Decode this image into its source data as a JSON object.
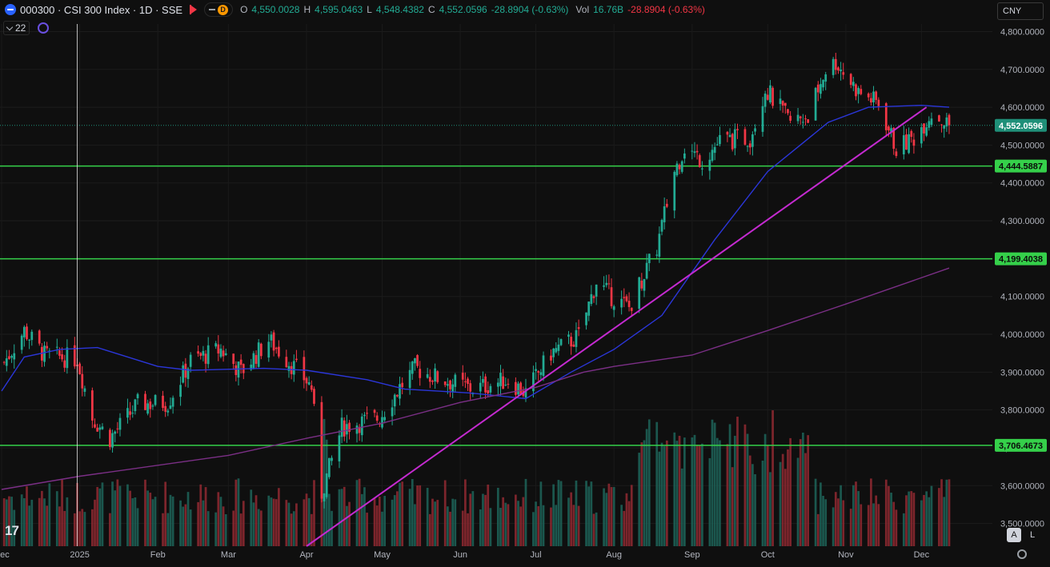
{
  "header": {
    "symbol": "000300 · CSI 300 Index · 1D · SSE",
    "ohlc": {
      "o_label": "O",
      "o": "4,550.0028",
      "h_label": "H",
      "h": "4,595.0463",
      "l_label": "L",
      "l": "4,548.4382",
      "c_label": "C",
      "c": "4,552.0596",
      "change": "-28.8904 (-0.63%)"
    },
    "vol_label": "Vol",
    "vol": "16.76B",
    "vol_change": "-28.8904 (-0.63%)",
    "indicator_count": "22",
    "pill_letter": "D",
    "currency": "CNY"
  },
  "controls": {
    "logo_text": "17",
    "auto_label": "A",
    "log_label": "L"
  },
  "colors": {
    "background": "#0f0f0f",
    "up": "#22ab94",
    "down": "#f23645",
    "ma_fast": "#2b36d9",
    "ma_slow": "#7b2f86",
    "trendline": "#c42ad0",
    "hline": "#35d04a",
    "last_price": "#1f8f78"
  },
  "chart_data": {
    "type": "candlestick",
    "title": "000300 · CSI 300 Index · 1D · SSE",
    "y_axis": {
      "min": 3440,
      "max": 4820,
      "ticks": [
        3500,
        3600,
        3700,
        3800,
        3900,
        4000,
        4100,
        4200,
        4300,
        4400,
        4500,
        4600,
        4700,
        4800
      ],
      "tick_labels": [
        "3,500.0000",
        "3,600.0000",
        "3,700.0000",
        "3,800.0000",
        "3,900.0000",
        "4,000.0000",
        "4,100.0000",
        "4,200.0000",
        "4,300.0000",
        "4,400.0000",
        "4,500.0000",
        "4,600.0000",
        "4,700.0000",
        "4,800.0000"
      ]
    },
    "x_axis": {
      "labels": [
        {
          "label": "Dec",
          "date": "2024-12-01"
        },
        {
          "label": "2025",
          "date": "2025-01-01"
        },
        {
          "label": "Feb",
          "date": "2025-02-01"
        },
        {
          "label": "Mar",
          "date": "2025-03-01"
        },
        {
          "label": "Apr",
          "date": "2025-04-01"
        },
        {
          "label": "May",
          "date": "2025-05-01"
        },
        {
          "label": "Jun",
          "date": "2025-06-01"
        },
        {
          "label": "Jul",
          "date": "2025-07-01"
        },
        {
          "label": "Aug",
          "date": "2025-08-01"
        },
        {
          "label": "Sep",
          "date": "2025-09-01"
        },
        {
          "label": "Oct",
          "date": "2025-10-01"
        },
        {
          "label": "Nov",
          "date": "2025-11-01"
        },
        {
          "label": "Dec",
          "date": "2025-12-01"
        }
      ]
    },
    "price_waypoints": [
      {
        "date": "2024-12-01",
        "close": 3915
      },
      {
        "date": "2024-12-10",
        "close": 4010
      },
      {
        "date": "2024-12-18",
        "close": 3945
      },
      {
        "date": "2024-12-31",
        "close": 3935
      },
      {
        "date": "2025-01-06",
        "close": 3780
      },
      {
        "date": "2025-01-13",
        "close": 3725
      },
      {
        "date": "2025-01-24",
        "close": 3815
      },
      {
        "date": "2025-02-05",
        "close": 3820
      },
      {
        "date": "2025-02-14",
        "close": 3930
      },
      {
        "date": "2025-02-26",
        "close": 3960
      },
      {
        "date": "2025-03-06",
        "close": 3900
      },
      {
        "date": "2025-03-17",
        "close": 3985
      },
      {
        "date": "2025-03-31",
        "close": 3885
      },
      {
        "date": "2025-04-03",
        "close": 3860
      },
      {
        "date": "2025-04-07",
        "close": 3580
      },
      {
        "date": "2025-04-15",
        "close": 3755
      },
      {
        "date": "2025-04-30",
        "close": 3780
      },
      {
        "date": "2025-05-08",
        "close": 3860
      },
      {
        "date": "2025-05-14",
        "close": 3910
      },
      {
        "date": "2025-05-23",
        "close": 3885
      },
      {
        "date": "2025-06-06",
        "close": 3855
      },
      {
        "date": "2025-06-20",
        "close": 3880
      },
      {
        "date": "2025-06-27",
        "close": 3845
      },
      {
        "date": "2025-07-07",
        "close": 3950
      },
      {
        "date": "2025-07-18",
        "close": 3995
      },
      {
        "date": "2025-07-25",
        "close": 4140
      },
      {
        "date": "2025-07-31",
        "close": 4100
      },
      {
        "date": "2025-08-07",
        "close": 4070
      },
      {
        "date": "2025-08-18",
        "close": 4230
      },
      {
        "date": "2025-08-25",
        "close": 4430
      },
      {
        "date": "2025-08-29",
        "close": 4495
      },
      {
        "date": "2025-09-05",
        "close": 4460
      },
      {
        "date": "2025-09-12",
        "close": 4510
      },
      {
        "date": "2025-09-24",
        "close": 4520
      },
      {
        "date": "2025-09-30",
        "close": 4650
      },
      {
        "date": "2025-10-10",
        "close": 4560
      },
      {
        "date": "2025-10-17",
        "close": 4580
      },
      {
        "date": "2025-10-24",
        "close": 4700
      },
      {
        "date": "2025-10-28",
        "close": 4720
      },
      {
        "date": "2025-11-06",
        "close": 4640
      },
      {
        "date": "2025-11-14",
        "close": 4610
      },
      {
        "date": "2025-11-21",
        "close": 4490
      },
      {
        "date": "2025-11-28",
        "close": 4520
      },
      {
        "date": "2025-12-05",
        "close": 4585
      },
      {
        "date": "2025-12-12",
        "close": 4552
      }
    ],
    "moving_averages": [
      {
        "points": [
          {
            "date": "2024-12-01",
            "v": 3850
          },
          {
            "date": "2024-12-10",
            "v": 3940
          },
          {
            "date": "2024-12-24",
            "v": 3960
          },
          {
            "date": "2025-01-08",
            "v": 3965
          },
          {
            "date": "2025-02-01",
            "v": 3915
          },
          {
            "date": "2025-02-14",
            "v": 3905
          },
          {
            "date": "2025-03-15",
            "v": 3910
          },
          {
            "date": "2025-04-01",
            "v": 3905
          },
          {
            "date": "2025-04-25",
            "v": 3880
          },
          {
            "date": "2025-05-10",
            "v": 3855
          },
          {
            "date": "2025-06-05",
            "v": 3845
          },
          {
            "date": "2025-06-27",
            "v": 3830
          },
          {
            "date": "2025-07-15",
            "v": 3900
          },
          {
            "date": "2025-08-01",
            "v": 3960
          },
          {
            "date": "2025-08-20",
            "v": 4050
          },
          {
            "date": "2025-09-10",
            "v": 4250
          },
          {
            "date": "2025-10-01",
            "v": 4430
          },
          {
            "date": "2025-10-25",
            "v": 4560
          },
          {
            "date": "2025-11-10",
            "v": 4600
          },
          {
            "date": "2025-12-01",
            "v": 4605
          },
          {
            "date": "2025-12-12",
            "v": 4600
          }
        ]
      },
      {
        "points": [
          {
            "date": "2024-12-01",
            "v": 3590
          },
          {
            "date": "2025-01-01",
            "v": 3625
          },
          {
            "date": "2025-03-01",
            "v": 3680
          },
          {
            "date": "2025-04-01",
            "v": 3725
          },
          {
            "date": "2025-05-01",
            "v": 3765
          },
          {
            "date": "2025-06-01",
            "v": 3820
          },
          {
            "date": "2025-07-01",
            "v": 3860
          },
          {
            "date": "2025-07-20",
            "v": 3900
          },
          {
            "date": "2025-08-01",
            "v": 3915
          },
          {
            "date": "2025-09-01",
            "v": 3945
          },
          {
            "date": "2025-10-01",
            "v": 4010
          },
          {
            "date": "2025-11-01",
            "v": 4080
          },
          {
            "date": "2025-12-12",
            "v": 4175
          }
        ]
      }
    ],
    "trendline": {
      "start": {
        "date": "2025-04-01",
        "v": 3440
      },
      "end": {
        "date": "2025-12-03",
        "v": 4600
      }
    },
    "horizontal_lines": [
      {
        "value": 4444.5887,
        "label": "4,444.5887"
      },
      {
        "value": 4199.4038,
        "label": "4,199.4038"
      },
      {
        "value": 3706.4673,
        "label": "3,706.4673"
      }
    ],
    "last_price": {
      "value": 4552.0596,
      "label": "4,552.0596"
    },
    "cursor_date": "2024-12-31",
    "volume_axis_max": 16.76
  }
}
